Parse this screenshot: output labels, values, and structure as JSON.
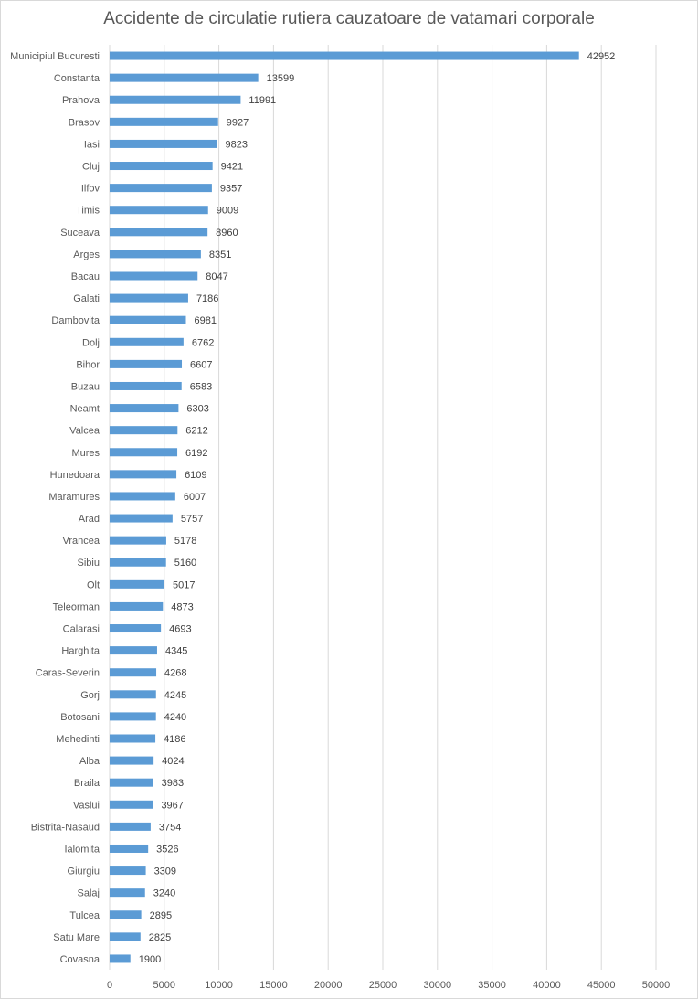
{
  "chart_data": {
    "type": "bar",
    "orientation": "horizontal",
    "title": "Accidente de circulatie rutiera cauzatoare de vatamari corporale",
    "xlabel": "",
    "ylabel": "",
    "xlim": [
      0,
      50000
    ],
    "xticks": [
      0,
      5000,
      10000,
      15000,
      20000,
      25000,
      30000,
      35000,
      40000,
      45000,
      50000
    ],
    "grid": true,
    "legend": "none",
    "bar_color": "#5b9bd5",
    "data_labels": true,
    "categories": [
      "Municipiul Bucuresti",
      "Constanta",
      "Prahova",
      "Brasov",
      "Iasi",
      "Cluj",
      "Ilfov",
      "Timis",
      "Suceava",
      "Arges",
      "Bacau",
      "Galati",
      "Dambovita",
      "Dolj",
      "Bihor",
      "Buzau",
      "Neamt",
      "Valcea",
      "Mures",
      "Hunedoara",
      "Maramures",
      "Arad",
      "Vrancea",
      "Sibiu",
      "Olt",
      "Teleorman",
      "Calarasi",
      "Harghita",
      "Caras-Severin",
      "Gorj",
      "Botosani",
      "Mehedinti",
      "Alba",
      "Braila",
      "Vaslui",
      "Bistrita-Nasaud",
      "Ialomita",
      "Giurgiu",
      "Salaj",
      "Tulcea",
      "Satu Mare",
      "Covasna"
    ],
    "values": [
      42952,
      13599,
      11991,
      9927,
      9823,
      9421,
      9357,
      9009,
      8960,
      8351,
      8047,
      7186,
      6981,
      6762,
      6607,
      6583,
      6303,
      6212,
      6192,
      6109,
      6007,
      5757,
      5178,
      5160,
      5017,
      4873,
      4693,
      4345,
      4268,
      4245,
      4240,
      4186,
      4024,
      3983,
      3967,
      3754,
      3526,
      3309,
      3240,
      2895,
      2825,
      1900
    ]
  }
}
